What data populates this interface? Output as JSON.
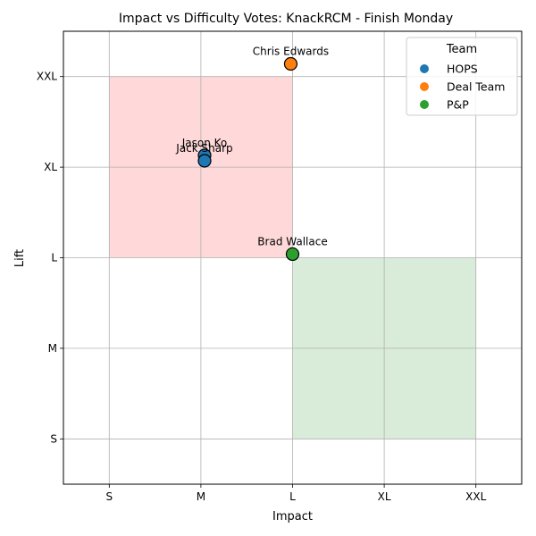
{
  "chart_data": {
    "type": "scatter",
    "title": "Impact vs Difficulty Votes: KnackRCM - Finish Monday",
    "xlabel": "Impact",
    "ylabel": "Lift",
    "x_categories": [
      "S",
      "M",
      "L",
      "XL",
      "XXL"
    ],
    "y_categories": [
      "S",
      "M",
      "L",
      "XL",
      "XXL"
    ],
    "xlim": [
      -0.5,
      4.5
    ],
    "ylim": [
      -0.5,
      4.5
    ],
    "grid": true,
    "legend": {
      "title": "Team",
      "position": "top-right"
    },
    "regions": [
      {
        "x0": 0,
        "x1": 2,
        "y0": 2,
        "y1": 4,
        "color": "#ff9999"
      },
      {
        "x0": 2,
        "x1": 4,
        "y0": 0,
        "y1": 2,
        "color": "#99cc99"
      }
    ],
    "series": [
      {
        "name": "HOPS",
        "color": "#1f77b4",
        "points": [
          {
            "label": "Jason Ko",
            "x": 1.04,
            "y": 3.13
          },
          {
            "label": "Jack Sharp",
            "x": 1.04,
            "y": 3.07
          }
        ]
      },
      {
        "name": "Deal Team",
        "color": "#ff7f0e",
        "points": [
          {
            "label": "Chris Edwards",
            "x": 1.98,
            "y": 4.14
          }
        ]
      },
      {
        "name": "P&P",
        "color": "#2ca02c",
        "points": [
          {
            "label": "Brad Wallace",
            "x": 2.0,
            "y": 2.04
          }
        ]
      }
    ]
  }
}
